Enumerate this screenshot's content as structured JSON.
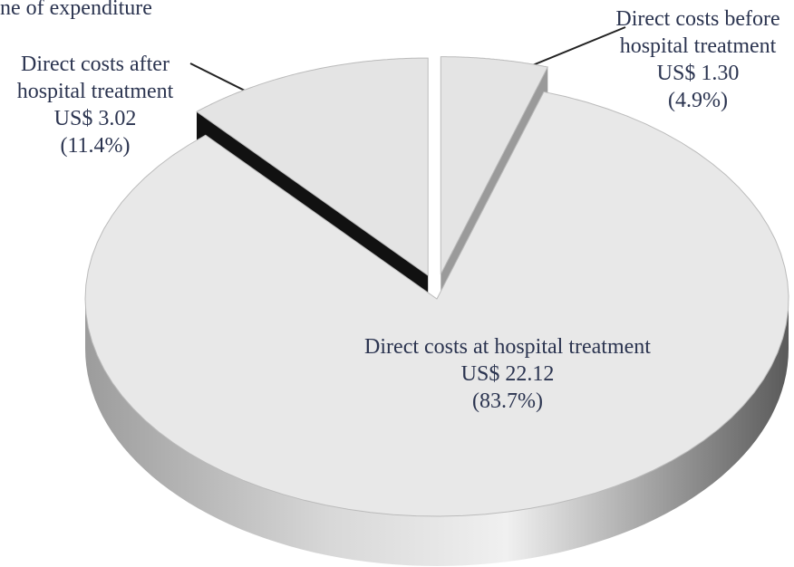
{
  "chart_data": {
    "type": "pie3d",
    "title": "ne of expenditure",
    "categories": [
      "Direct costs before hospital treatment",
      "Direct costs at hospital treatment",
      "Direct costs after hospital treatment"
    ],
    "values": [
      1.3,
      22.12,
      3.02
    ],
    "value_labels": [
      "US$ 1.30",
      "US$ 22.12",
      "US$ 3.02"
    ],
    "percentages": [
      4.9,
      83.7,
      11.4
    ],
    "percent_labels": [
      "(4.9%)",
      "(83.7%)",
      "(11.4%)"
    ],
    "exploded": [
      true,
      false,
      true
    ],
    "colors": [
      "#e4e4e4",
      "#e8e8e8",
      "#e4e4e4"
    ],
    "wall_colors": [
      "#9a9a9a",
      "#b0b0b0",
      "#111111"
    ]
  }
}
